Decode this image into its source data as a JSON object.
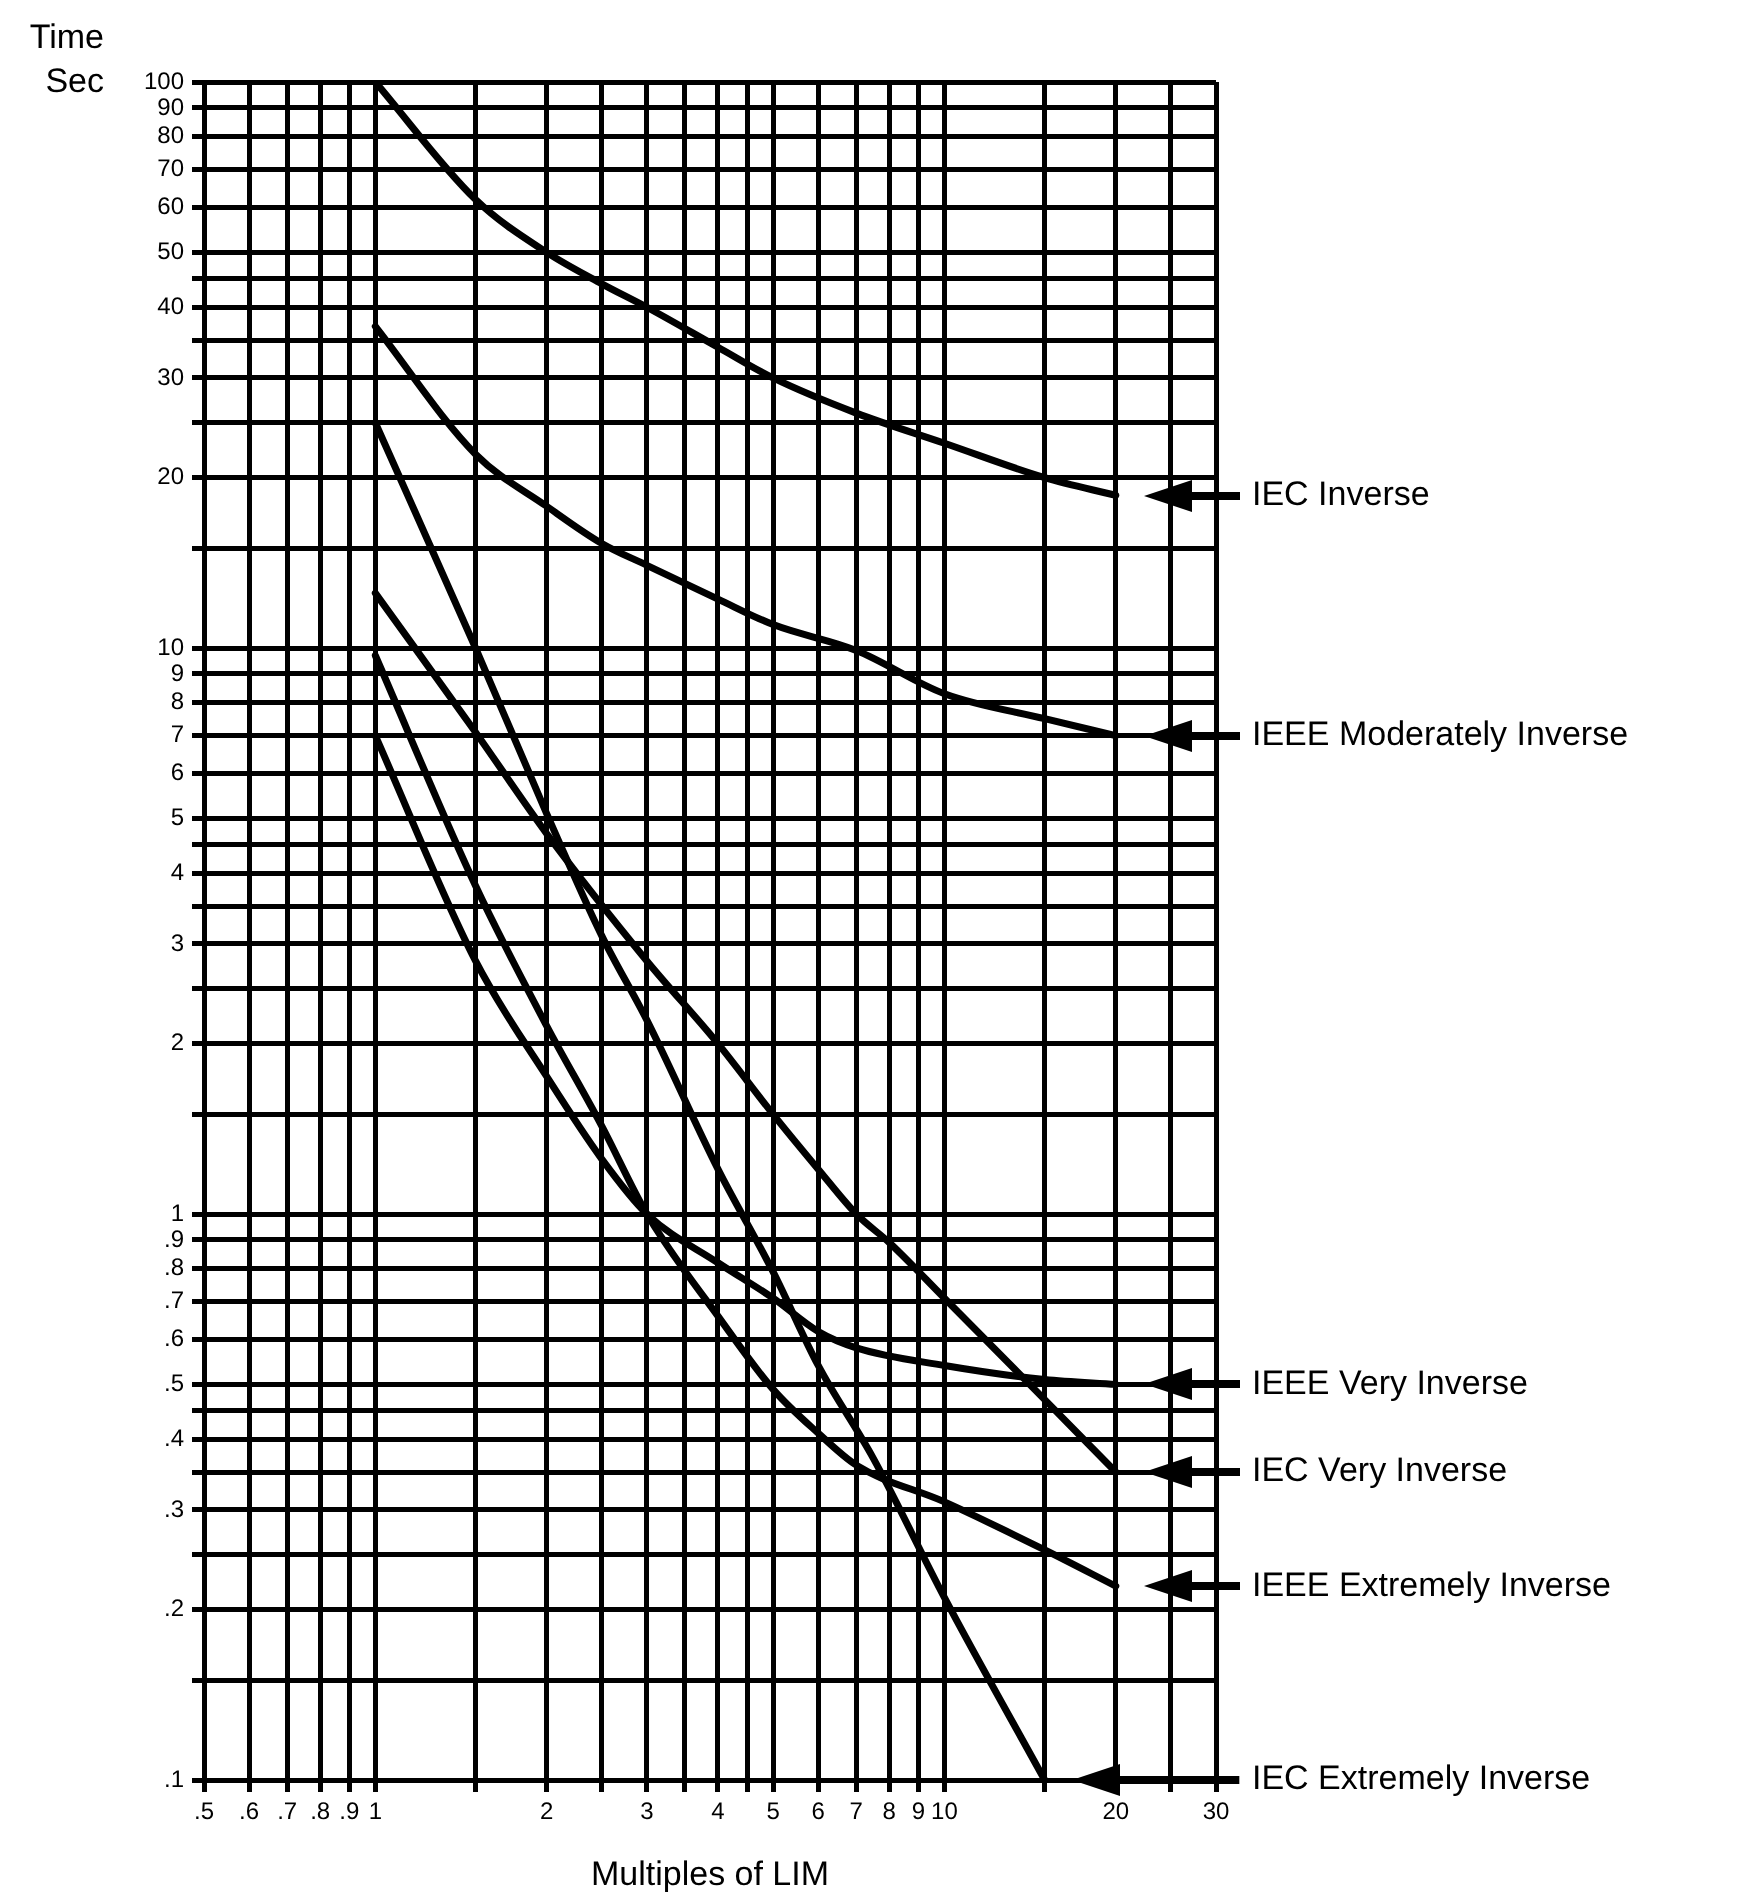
{
  "chart_data": {
    "type": "line",
    "xlabel": "Multiples of LIM",
    "ylabel": "Time Sec",
    "log": "xy",
    "grid": true,
    "legend": "right",
    "marker": "none",
    "line_style": "solid",
    "xlim": [
      0.5,
      30
    ],
    "ylim": [
      0.1,
      100
    ],
    "xticks": [
      {
        "value": 0.5,
        "label": ".5"
      },
      {
        "value": 0.6,
        "label": ".6"
      },
      {
        "value": 0.7,
        "label": ".7"
      },
      {
        "value": 0.8,
        "label": ".8"
      },
      {
        "value": 0.9,
        "label": ".9"
      },
      1,
      {
        "value": 1.5,
        "label": null
      },
      2,
      {
        "value": 2.5,
        "label": null
      },
      3,
      {
        "value": 3.5,
        "label": null
      },
      4,
      {
        "value": 4.5,
        "label": null
      },
      5,
      6,
      7,
      8,
      9,
      10,
      {
        "value": 15,
        "label": null
      },
      20,
      {
        "value": 25,
        "label": null
      },
      30
    ],
    "yticks": [
      {
        "value": 0.1,
        "label": ".1"
      },
      {
        "value": 0.15,
        "label": null
      },
      {
        "value": 0.2,
        "label": ".2"
      },
      {
        "value": 0.25,
        "label": null
      },
      {
        "value": 0.3,
        "label": ".3"
      },
      {
        "value": 0.35,
        "label": null
      },
      {
        "value": 0.4,
        "label": ".4"
      },
      {
        "value": 0.45,
        "label": null
      },
      {
        "value": 0.5,
        "label": ".5"
      },
      {
        "value": 0.6,
        "label": ".6"
      },
      {
        "value": 0.7,
        "label": ".7"
      },
      {
        "value": 0.8,
        "label": ".8"
      },
      {
        "value": 0.9,
        "label": ".9"
      },
      1,
      {
        "value": 1.5,
        "label": null
      },
      2,
      {
        "value": 2.5,
        "label": null
      },
      3,
      {
        "value": 3.5,
        "label": null
      },
      4,
      {
        "value": 4.5,
        "label": null
      },
      5,
      6,
      7,
      8,
      9,
      10,
      {
        "value": 15,
        "label": null
      },
      20,
      {
        "value": 25,
        "label": null
      },
      30,
      {
        "value": 35,
        "label": null
      },
      40,
      {
        "value": 45,
        "label": null
      },
      50,
      60,
      70,
      80,
      90,
      100
    ],
    "series": [
      {
        "name": "IEC Inverse",
        "color": "#000000",
        "x": [
          1,
          1.5,
          2,
          2.5,
          3,
          4,
          5,
          7,
          10,
          15,
          20
        ],
        "values": [
          100,
          62,
          50,
          44,
          40,
          34,
          30,
          26,
          23,
          20,
          18.6
        ]
      },
      {
        "name": "IEEE Moderately Inverse",
        "color": "#000000",
        "x": [
          1,
          1.5,
          2,
          2.5,
          3,
          4,
          5,
          7,
          10,
          15,
          20
        ],
        "values": [
          37,
          22,
          17.8,
          15.3,
          14,
          12.2,
          11,
          9.9,
          8.3,
          7.5,
          7
        ]
      },
      {
        "name": "IEEE Very Inverse",
        "color": "#000000",
        "x": [
          1,
          1.5,
          2,
          2.5,
          3,
          4,
          5,
          6,
          7,
          10,
          15,
          20
        ],
        "values": [
          7,
          2.8,
          1.75,
          1.25,
          1,
          0.82,
          0.71,
          0.62,
          0.58,
          0.54,
          0.51,
          0.5
        ]
      },
      {
        "name": "IEC Very Inverse",
        "color": "#000000",
        "x": [
          1,
          1.5,
          2,
          3,
          4,
          5,
          6,
          7,
          8,
          10,
          15,
          20
        ],
        "values": [
          12.5,
          7.1,
          4.7,
          2.8,
          2,
          1.5,
          1.2,
          1,
          0.89,
          0.71,
          0.47,
          0.35
        ]
      },
      {
        "name": "IEEE Extremely Inverse",
        "color": "#000000",
        "x": [
          1,
          1.5,
          2,
          2.5,
          3,
          4,
          5,
          6,
          7,
          10,
          15,
          20
        ],
        "values": [
          9.7,
          3.8,
          2.15,
          1.43,
          1,
          0.66,
          0.49,
          0.41,
          0.36,
          0.31,
          0.255,
          0.22
        ]
      },
      {
        "name": "IEC Extremely Inverse",
        "color": "#000000",
        "x": [
          1,
          1.5,
          2,
          2.5,
          3,
          4,
          5,
          6,
          7.5,
          10,
          15
        ],
        "values": [
          25,
          10,
          5.1,
          3.1,
          2.2,
          1.2,
          0.79,
          0.54,
          0.37,
          0.21,
          0.1
        ]
      }
    ]
  }
}
